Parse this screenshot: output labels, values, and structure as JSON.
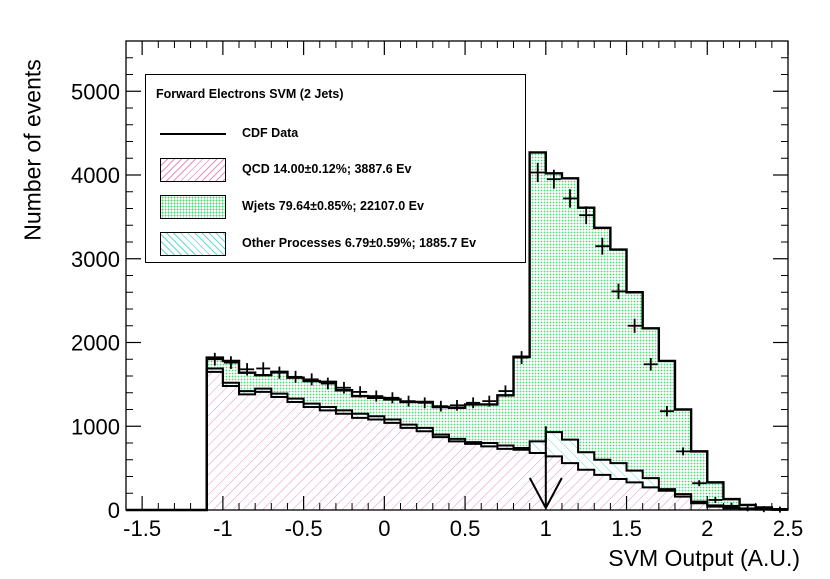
{
  "chart_data": {
    "type": "histogram",
    "xlabel": "SVM Output (A.U.)",
    "ylabel": "Number of events",
    "xlim": [
      -1.6,
      2.5
    ],
    "ylim": [
      0,
      5600
    ],
    "x_ticks": [
      -1.5,
      -1,
      -0.5,
      0,
      0.5,
      1,
      1.5,
      2,
      2.5
    ],
    "x_tick_labels": [
      "-1.5",
      "-1",
      "-0.5",
      "0",
      "0.5",
      "1",
      "1.5",
      "2",
      "2.5"
    ],
    "y_ticks": [
      0,
      1000,
      2000,
      3000,
      4000,
      5000
    ],
    "y_tick_labels": [
      "0",
      "1000",
      "2000",
      "3000",
      "4000",
      "5000"
    ],
    "bin_edges": [
      -1.6,
      -1.5,
      -1.4,
      -1.3,
      -1.2,
      -1.1,
      -1.0,
      -0.9,
      -0.8,
      -0.7,
      -0.6,
      -0.5,
      -0.4,
      -0.3,
      -0.2,
      -0.1,
      0.0,
      0.1,
      0.2,
      0.3,
      0.4,
      0.5,
      0.6,
      0.7,
      0.8,
      0.9,
      1.0,
      1.1,
      1.2,
      1.3,
      1.4,
      1.5,
      1.6,
      1.7,
      1.8,
      1.9,
      2.0,
      2.1,
      2.2,
      2.3,
      2.4,
      2.5
    ],
    "legend": {
      "title": "Forward Electrons SVM (2 Jets)",
      "entries": [
        {
          "label": "CDF Data",
          "style": "line"
        },
        {
          "label": "QCD 14.00±0.12%;  3887.6 Ev",
          "style": "hatch-qcd"
        },
        {
          "label": "Wjets 79.64±0.85%;  22107.0 Ev",
          "style": "dots-w"
        },
        {
          "label": "Other Processes 6.79±0.59%;  1885.7 Ev",
          "style": "hatch-other"
        }
      ]
    },
    "series": [
      {
        "name": "QCD",
        "values": [
          0,
          0,
          0,
          0,
          0,
          1650,
          1480,
          1380,
          1410,
          1350,
          1290,
          1230,
          1190,
          1150,
          1100,
          1080,
          1040,
          980,
          940,
          870,
          820,
          790,
          760,
          730,
          720,
          680,
          640,
          560,
          480,
          420,
          370,
          330,
          270,
          230,
          160,
          80,
          40,
          20,
          10,
          5,
          2
        ]
      },
      {
        "name": "QCD + Other Processes",
        "values": [
          0,
          0,
          0,
          0,
          0,
          1690,
          1520,
          1420,
          1450,
          1390,
          1330,
          1270,
          1230,
          1190,
          1150,
          1120,
          1080,
          1020,
          980,
          900,
          850,
          810,
          800,
          770,
          740,
          820,
          930,
          840,
          690,
          600,
          560,
          470,
          380,
          250,
          190,
          100,
          55,
          30,
          15,
          8,
          4
        ]
      },
      {
        "name": "Total (QCD + Wjets + Other)",
        "values": [
          0,
          0,
          0,
          0,
          0,
          1820,
          1780,
          1640,
          1610,
          1650,
          1580,
          1540,
          1530,
          1430,
          1360,
          1340,
          1320,
          1290,
          1290,
          1230,
          1220,
          1260,
          1260,
          1370,
          1830,
          4270,
          4020,
          3960,
          3610,
          3370,
          3110,
          2600,
          2170,
          1780,
          1200,
          700,
          330,
          130,
          60,
          30,
          10
        ]
      },
      {
        "name": "CDF Data",
        "values": [
          0,
          0,
          0,
          0,
          0,
          1800,
          1760,
          1680,
          1690,
          1640,
          1590,
          1560,
          1510,
          1460,
          1410,
          1360,
          1340,
          1300,
          1280,
          1240,
          1250,
          1280,
          1300,
          1420,
          1820,
          4030,
          3950,
          3720,
          3520,
          3150,
          2610,
          2200,
          1740,
          1180,
          700,
          320,
          120,
          50,
          20,
          10,
          5
        ]
      }
    ],
    "annotation": {
      "type": "cut-arrow",
      "x": 1.0,
      "y_from": 1000,
      "y_to": 0
    }
  }
}
